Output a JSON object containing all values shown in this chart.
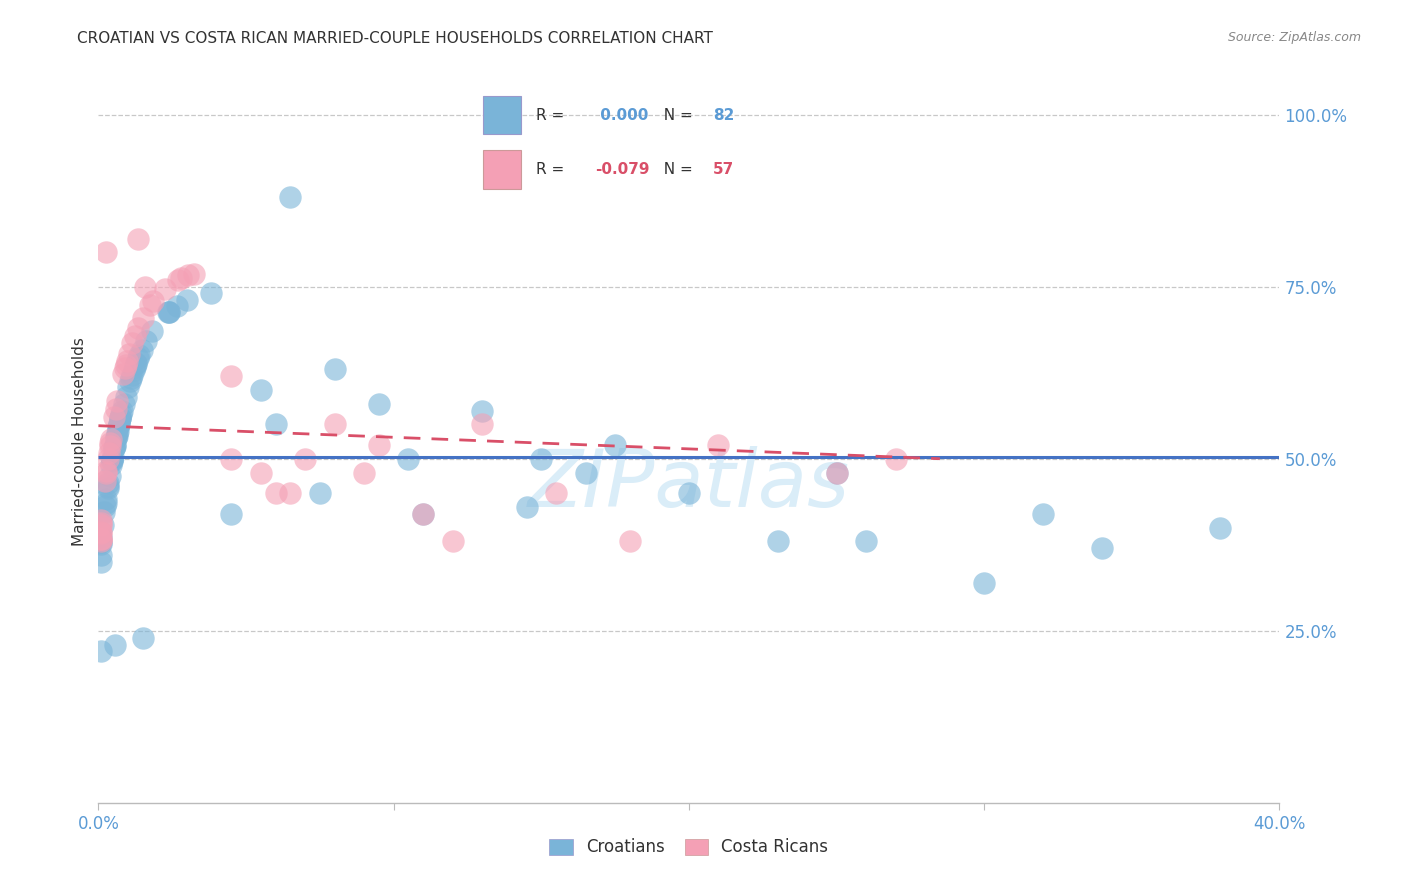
{
  "title": "CROATIAN VS COSTA RICAN MARRIED-COUPLE HOUSEHOLDS CORRELATION CHART",
  "source": "Source: ZipAtlas.com",
  "ylabel": "Married-couple Households",
  "xlim": [
    0.0,
    0.4
  ],
  "ylim": [
    0.0,
    1.05
  ],
  "yticks": [
    0.25,
    0.5,
    0.75,
    1.0
  ],
  "ytick_labels": [
    "25.0%",
    "50.0%",
    "75.0%",
    "100.0%"
  ],
  "xticks": [
    0.0,
    0.1,
    0.2,
    0.3,
    0.4
  ],
  "xtick_labels": [
    "0.0%",
    "",
    "",
    "",
    "40.0%"
  ],
  "croatian_R": "0.000",
  "croatian_N": 82,
  "costarican_R": "-0.079",
  "costarican_N": 57,
  "croatian_color": "#7ab4d8",
  "costarican_color": "#f4a0b5",
  "trend_croatian_color": "#4472c4",
  "trend_costarican_color": "#d94f68",
  "background_color": "#ffffff",
  "grid_color": "#c8c8c8",
  "watermark": "ZIPatlas",
  "watermark_color": "#daedf8",
  "title_color": "#333333",
  "source_color": "#888888",
  "tick_color": "#5b9bd5",
  "ylabel_color": "#333333"
}
